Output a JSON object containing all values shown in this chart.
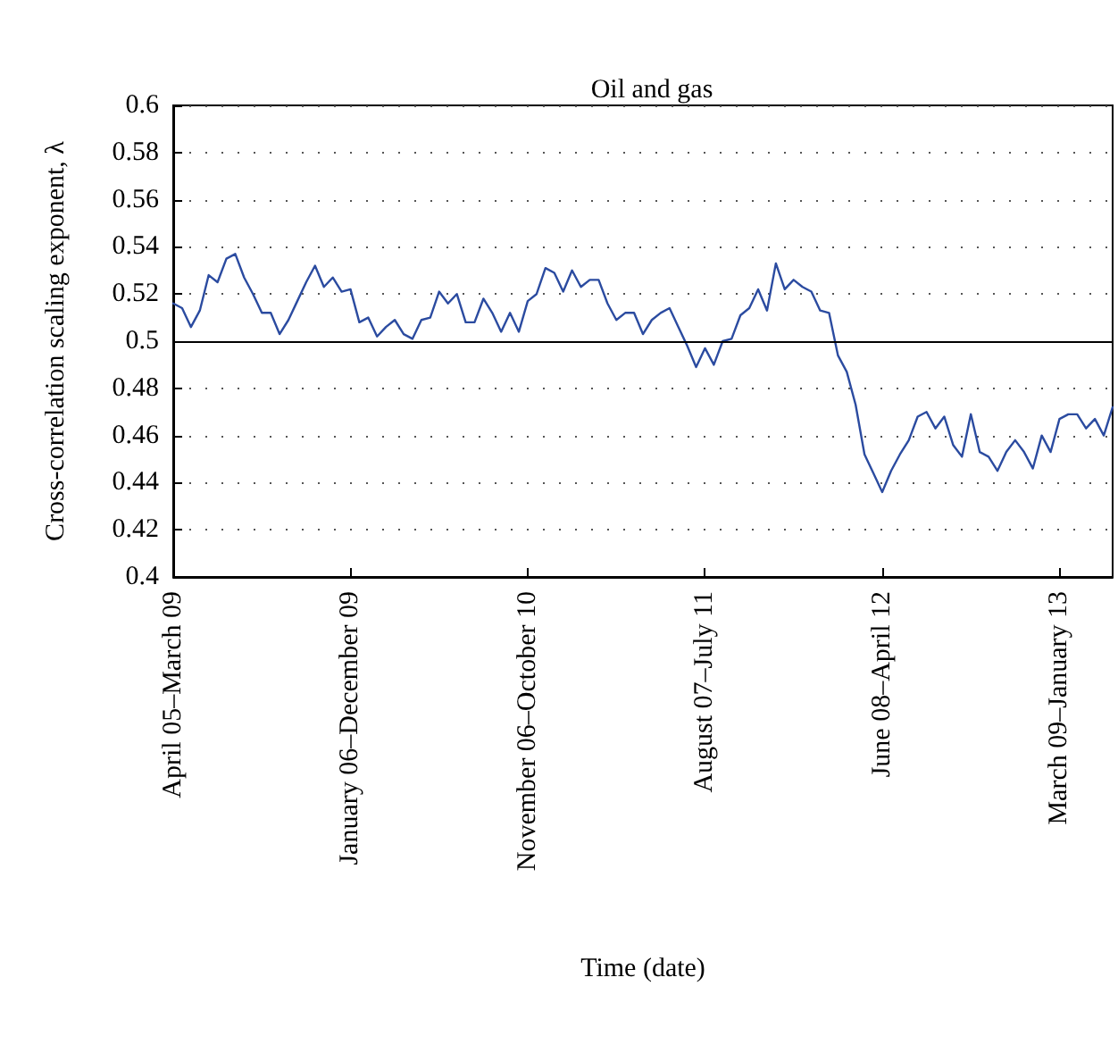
{
  "chart_data": {
    "type": "line",
    "title": "Oil and gas",
    "xlabel": "Time (date)",
    "ylabel": "Cross-correlation scaling exponent, λ",
    "categories": [
      "April 05–March 09",
      null,
      null,
      null,
      null,
      null,
      null,
      null,
      null,
      null,
      null,
      null,
      null,
      null,
      null,
      null,
      null,
      null,
      null,
      null,
      "January 06–December 09",
      null,
      null,
      null,
      null,
      null,
      null,
      null,
      null,
      null,
      null,
      null,
      null,
      null,
      null,
      null,
      null,
      null,
      null,
      null,
      "November 06–October 10",
      null,
      null,
      null,
      null,
      null,
      null,
      null,
      null,
      null,
      null,
      null,
      null,
      null,
      null,
      null,
      null,
      null,
      null,
      null,
      "August 07–July 11",
      null,
      null,
      null,
      null,
      null,
      null,
      null,
      null,
      null,
      null,
      null,
      null,
      null,
      null,
      null,
      null,
      null,
      null,
      null,
      "June 08–April 12",
      null,
      null,
      null,
      null,
      null,
      null,
      null,
      null,
      null,
      null,
      null,
      null,
      null,
      null,
      null,
      null,
      null,
      null,
      null,
      "March 09–January 13",
      null,
      null,
      null,
      null,
      null,
      null
    ],
    "ylim": [
      0.4,
      0.6
    ],
    "yticks": [
      0.4,
      0.42,
      0.44,
      0.46,
      0.48,
      0.5,
      0.52,
      0.54,
      0.56,
      0.58,
      0.6
    ],
    "grid": "y",
    "marker": "none",
    "line_style": "solid",
    "ref_lines": [
      {
        "axis": "y",
        "value": 0.5,
        "color": "#000000",
        "line_style": "solid"
      }
    ],
    "series": [
      {
        "color": "#2b4ba0",
        "values": [
          0.516,
          0.514,
          0.506,
          0.513,
          0.528,
          0.525,
          0.535,
          0.537,
          0.527,
          0.52,
          0.512,
          0.512,
          0.503,
          0.509,
          0.517,
          0.525,
          0.532,
          0.523,
          0.527,
          0.521,
          0.522,
          0.508,
          0.51,
          0.502,
          0.506,
          0.509,
          0.503,
          0.501,
          0.509,
          0.51,
          0.521,
          0.516,
          0.52,
          0.508,
          0.508,
          0.518,
          0.512,
          0.504,
          0.512,
          0.504,
          0.517,
          0.52,
          0.531,
          0.529,
          0.521,
          0.53,
          0.523,
          0.526,
          0.526,
          0.516,
          0.509,
          0.512,
          0.512,
          0.503,
          0.509,
          0.512,
          0.514,
          0.506,
          0.498,
          0.489,
          0.497,
          0.49,
          0.5,
          0.501,
          0.511,
          0.514,
          0.522,
          0.513,
          0.533,
          0.522,
          0.526,
          0.523,
          0.521,
          0.513,
          0.512,
          0.494,
          0.487,
          0.473,
          0.452,
          0.444,
          0.436,
          0.445,
          0.452,
          0.458,
          0.468,
          0.47,
          0.463,
          0.468,
          0.456,
          0.451,
          0.469,
          0.453,
          0.451,
          0.445,
          0.453,
          0.458,
          0.453,
          0.446,
          0.46,
          0.453,
          0.467,
          0.469,
          0.469,
          0.463,
          0.467,
          0.46,
          0.472
        ]
      }
    ]
  }
}
